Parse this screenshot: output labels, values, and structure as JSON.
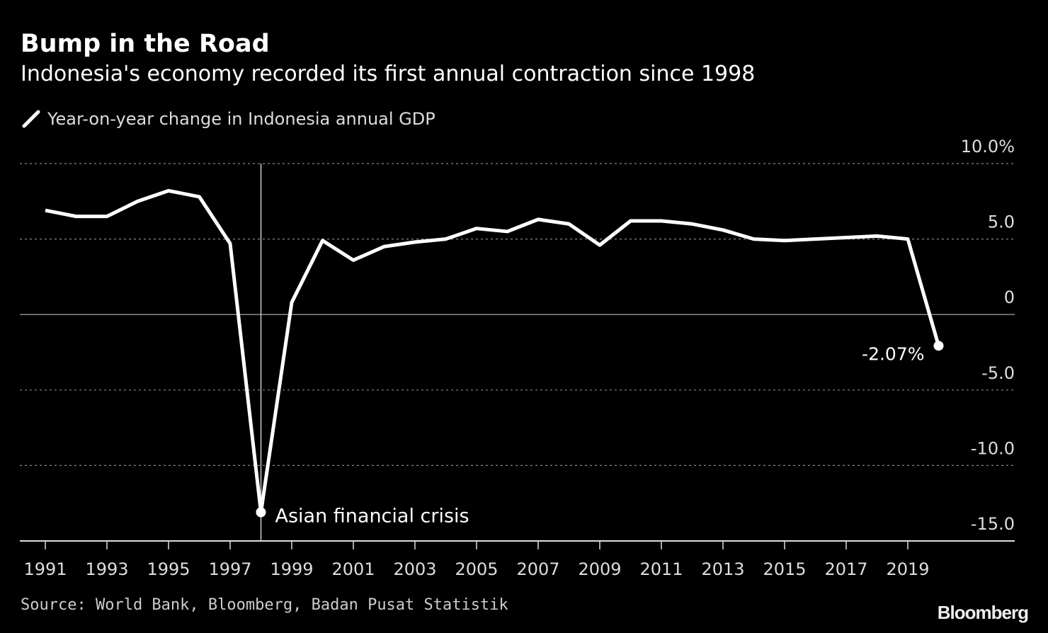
{
  "chart_data": {
    "type": "line",
    "title": "Bump in the Road",
    "subtitle": "Indonesia's economy recorded its first annual contraction since 1998",
    "series": [
      {
        "name": "Year-on-year change in Indonesia annual GDP",
        "color": "#ffffff",
        "x": [
          1991,
          1992,
          1993,
          1994,
          1995,
          1996,
          1997,
          1998,
          1999,
          2000,
          2001,
          2002,
          2003,
          2004,
          2005,
          2006,
          2007,
          2008,
          2009,
          2010,
          2011,
          2012,
          2013,
          2014,
          2015,
          2016,
          2017,
          2018,
          2019,
          2020
        ],
        "values": [
          6.9,
          6.5,
          6.5,
          7.5,
          8.2,
          7.8,
          4.7,
          -13.1,
          0.8,
          4.9,
          3.6,
          4.5,
          4.8,
          5.0,
          5.7,
          5.5,
          6.3,
          6.0,
          4.6,
          6.2,
          6.2,
          6.0,
          5.6,
          5.0,
          4.9,
          5.0,
          5.1,
          5.2,
          5.0,
          -2.07
        ]
      }
    ],
    "xlim": [
      1990.2,
      2020.5
    ],
    "ylim": [
      -15,
      10
    ],
    "y_ticks": [
      {
        "value": 10,
        "label": "10.0%"
      },
      {
        "value": 5,
        "label": "5.0"
      },
      {
        "value": 0,
        "label": "0"
      },
      {
        "value": -5,
        "label": "-5.0"
      },
      {
        "value": -10,
        "label": "-10.0"
      },
      {
        "value": -15,
        "label": "-15.0"
      }
    ],
    "x_ticks": [
      "1991",
      "1993",
      "1995",
      "1997",
      "1999",
      "2001",
      "2003",
      "2005",
      "2007",
      "2009",
      "2011",
      "2013",
      "2015",
      "2017",
      "2019"
    ],
    "annotations": [
      {
        "x": 1998,
        "y": -13.1,
        "text": "Asian financial crisis",
        "vertical_line": true
      },
      {
        "x": 2020,
        "y": -2.07,
        "text": "-2.07%"
      }
    ],
    "grid": true,
    "y_axis_position": "right",
    "legend_placement": "top-left"
  },
  "source": "Source: World Bank, Bloomberg, Badan Pusat Statistik",
  "logo": "Bloomberg"
}
